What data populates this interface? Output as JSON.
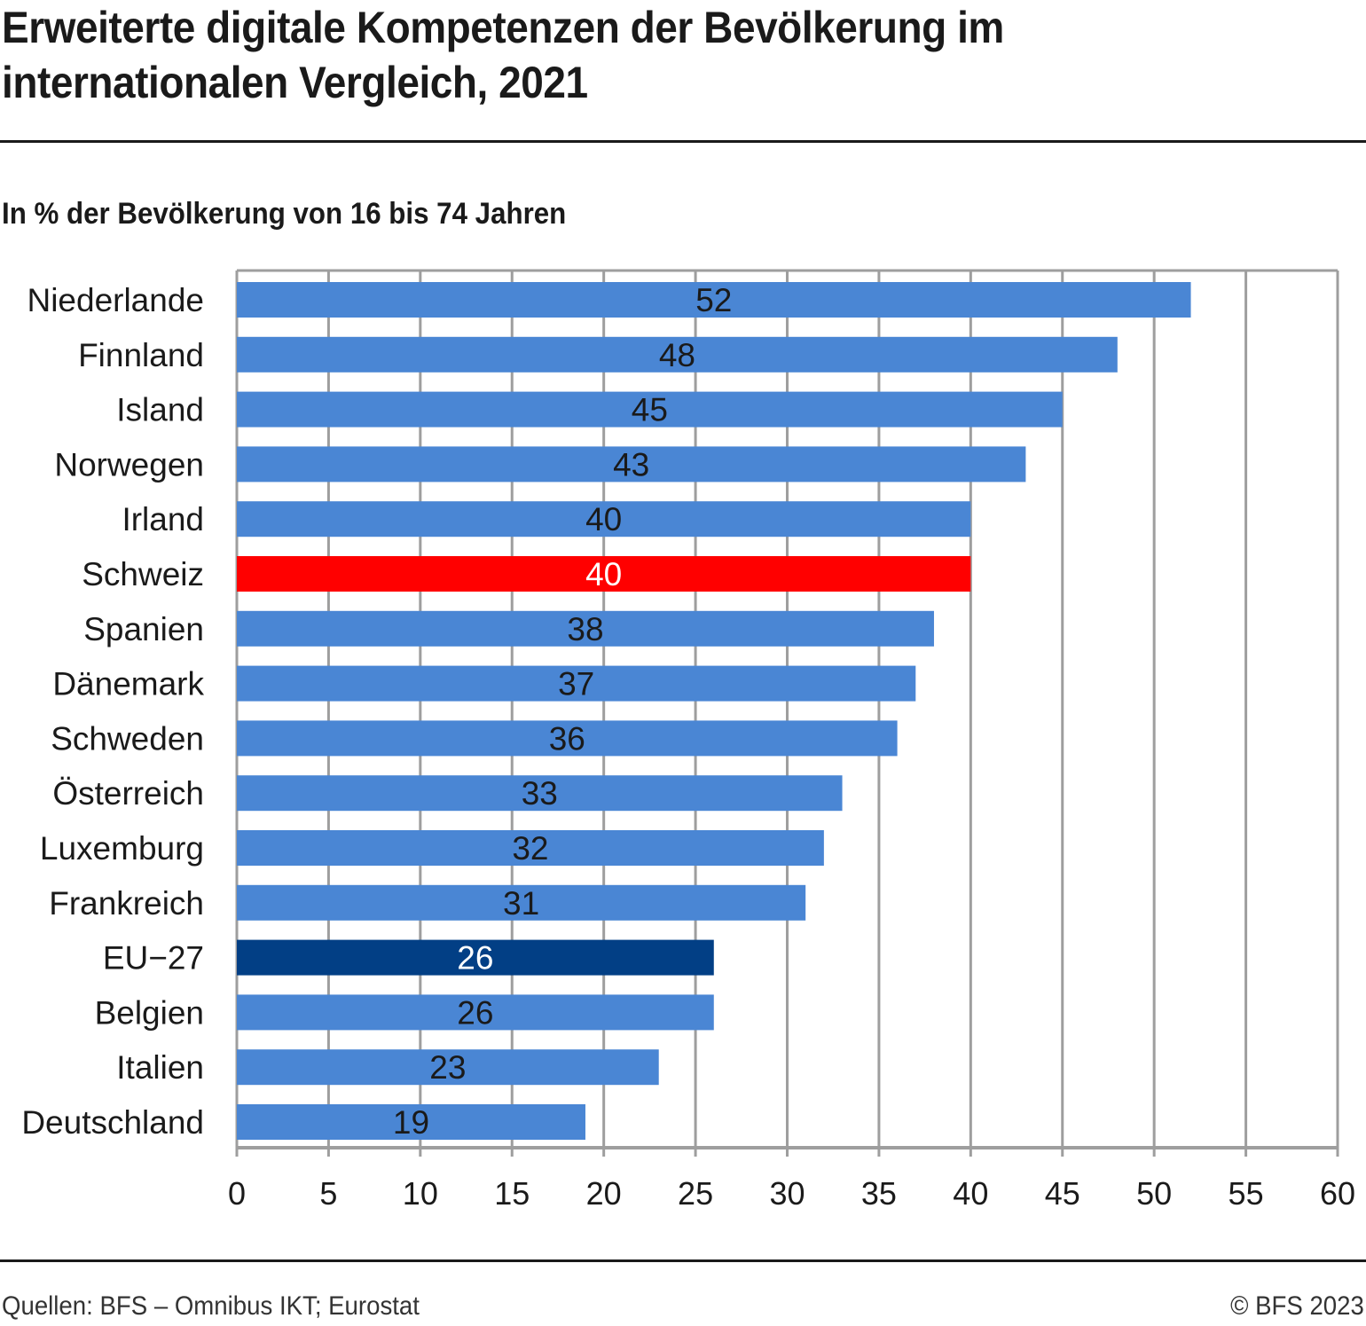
{
  "header": {
    "title": "Erweiterte digitale Kompetenzen der Bevölkerung im internationalen Vergleich, 2021",
    "subtitle": "In % der Bevölkerung von 16 bis 74 Jahren"
  },
  "footer": {
    "source": "Quellen: BFS – Omnibus IKT; Eurostat",
    "copyright": "© BFS 2023"
  },
  "colors": {
    "default_bar": "#4a86d4",
    "highlight_switzerland": "#ff0000",
    "highlight_eu": "#023f85",
    "grid": "#9e9e9e",
    "label_dark": "#1a1a1a",
    "label_light": "#ffffff"
  },
  "chart_data": {
    "type": "bar",
    "orientation": "horizontal",
    "title": "Erweiterte digitale Kompetenzen der Bevölkerung im internationalen Vergleich, 2021",
    "subtitle": "In % der Bevölkerung von 16 bis 74 Jahren",
    "xlabel": "",
    "ylabel": "",
    "xlim": [
      0,
      60
    ],
    "xticks": [
      0,
      5,
      10,
      15,
      20,
      25,
      30,
      35,
      40,
      45,
      50,
      55,
      60
    ],
    "grid": true,
    "legend": "none",
    "categories": [
      "Niederlande",
      "Finnland",
      "Island",
      "Norwegen",
      "Irland",
      "Schweiz",
      "Spanien",
      "Dänemark",
      "Schweden",
      "Österreich",
      "Luxemburg",
      "Frankreich",
      "EU−27",
      "Belgien",
      "Italien",
      "Deutschland"
    ],
    "values": [
      52,
      48,
      45,
      43,
      40,
      40,
      38,
      37,
      36,
      33,
      32,
      31,
      26,
      26,
      23,
      19
    ],
    "highlight": {
      "Schweiz": "switzerland",
      "EU−27": "eu"
    }
  }
}
